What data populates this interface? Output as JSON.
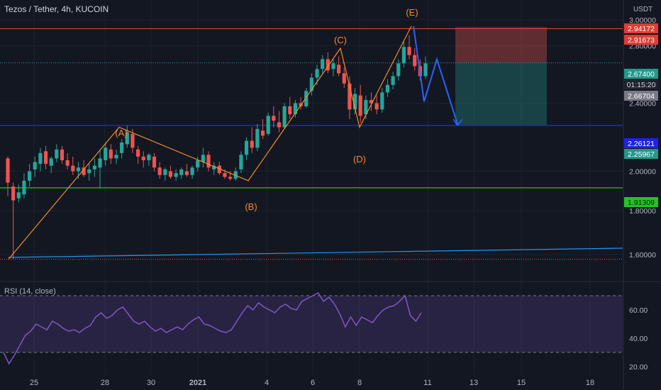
{
  "header": {
    "title": "Tezos / Tether, 4h, KUCOIN",
    "unit": "USDT"
  },
  "rsi": {
    "label": "RSI (14, close)",
    "levels": [
      70,
      30
    ],
    "ticks": [
      "60.00",
      "40.00",
      "20.00"
    ]
  },
  "colors": {
    "background": "#131722",
    "up": "#26a69a",
    "down": "#ef5350",
    "wave": "#f28c28",
    "projection": "#2962ff",
    "support": "#1e22e6",
    "green_line": "#22c422",
    "red_line": "#e53935",
    "trend": "#2196f3",
    "rsi": "#7e57c2",
    "grid": "#1e222d"
  },
  "chart_data": {
    "type": "candlestick",
    "title": "Tezos / Tether, 4h, KUCOIN",
    "ylabel": "USDT",
    "ylim": [
      1.5,
      3.05
    ],
    "y_ticks": [
      "3.00000",
      "2.80000",
      "2.40000",
      "2.00000",
      "1.80000",
      "1.60000"
    ],
    "x_ticks": [
      "25",
      "28",
      "30",
      "2021",
      "4",
      "6",
      "8",
      "11",
      "13",
      "15",
      "18"
    ],
    "wave_labels": [
      {
        "label": "(A)",
        "price": 2.25
      },
      {
        "label": "(B)",
        "price": 1.95
      },
      {
        "label": "(C)",
        "price": 2.78
      },
      {
        "label": "(D)",
        "price": 2.25
      },
      {
        "label": "(E)",
        "price": 2.95
      }
    ],
    "wave_path": [
      1.58,
      2.25,
      1.95,
      2.78,
      2.25,
      2.95
    ],
    "projection_path": [
      2.95,
      2.41,
      2.7,
      2.27
    ],
    "horizontal_lines": [
      {
        "name": "red-resistance",
        "price": 2.93
      },
      {
        "name": "blue-support",
        "price": 2.26121
      },
      {
        "name": "green-support",
        "price": 1.91309
      }
    ],
    "position": {
      "stop": 2.94172,
      "entry": 2.674,
      "target": 2.26121
    },
    "price_labels": [
      {
        "text": "2.94172",
        "price": 2.94172,
        "kind": "red"
      },
      {
        "text": "2.91673",
        "price": 2.91673,
        "kind": "red"
      },
      {
        "text": "2.67400",
        "price": 2.674,
        "kind": "teal"
      },
      {
        "text": "01:15:20",
        "price": 2.636,
        "kind": "dark"
      },
      {
        "text": "2.66704",
        "price": 2.66704,
        "kind": "grey"
      },
      {
        "text": "2.26121",
        "price": 2.26121,
        "kind": "blue"
      },
      {
        "text": "2.25967",
        "price": 2.25967,
        "kind": "teal"
      },
      {
        "text": "1.91309",
        "price": 1.91309,
        "kind": "green"
      }
    ],
    "candles": [
      [
        2.07,
        2.08,
        1.87,
        1.94
      ],
      [
        1.92,
        1.94,
        1.58,
        1.85
      ],
      [
        1.86,
        1.93,
        1.84,
        1.89
      ],
      [
        1.88,
        1.99,
        1.86,
        1.95
      ],
      [
        1.95,
        2.04,
        1.92,
        2.0
      ],
      [
        2.01,
        2.08,
        1.97,
        2.05
      ],
      [
        2.04,
        2.13,
        2.0,
        2.1
      ],
      [
        2.11,
        2.14,
        2.01,
        2.04
      ],
      [
        2.03,
        2.08,
        1.99,
        2.07
      ],
      [
        2.07,
        2.15,
        2.05,
        2.12
      ],
      [
        2.12,
        2.14,
        2.04,
        2.06
      ],
      [
        2.06,
        2.1,
        2.01,
        2.03
      ],
      [
        2.03,
        2.08,
        1.98,
        2.0
      ],
      [
        2.0,
        2.05,
        1.96,
        2.02
      ],
      [
        2.02,
        2.06,
        1.97,
        1.98
      ],
      [
        1.99,
        2.04,
        1.95,
        2.01
      ],
      [
        2.01,
        2.07,
        1.97,
        2.03
      ],
      [
        2.02,
        2.12,
        1.91,
        2.07
      ],
      [
        2.06,
        2.16,
        2.03,
        2.13
      ],
      [
        2.12,
        2.15,
        2.04,
        2.07
      ],
      [
        2.07,
        2.12,
        2.04,
        2.09
      ],
      [
        2.1,
        2.18,
        2.07,
        2.16
      ],
      [
        2.15,
        2.26,
        2.13,
        2.22
      ],
      [
        2.21,
        2.24,
        2.1,
        2.13
      ],
      [
        2.12,
        2.14,
        2.04,
        2.08
      ],
      [
        2.08,
        2.11,
        2.02,
        2.06
      ],
      [
        2.06,
        2.1,
        2.03,
        2.09
      ],
      [
        2.08,
        2.1,
        2.0,
        2.02
      ],
      [
        2.02,
        2.05,
        1.96,
        1.98
      ],
      [
        1.98,
        2.02,
        1.95,
        2.01
      ],
      [
        2.0,
        2.03,
        1.96,
        1.97
      ],
      [
        1.97,
        2.01,
        1.95,
        1.99
      ],
      [
        1.98,
        2.02,
        1.96,
        2.01
      ],
      [
        2.0,
        2.04,
        1.97,
        1.98
      ],
      [
        1.98,
        2.03,
        1.96,
        2.02
      ],
      [
        2.02,
        2.08,
        2.0,
        2.06
      ],
      [
        2.05,
        2.13,
        2.02,
        2.09
      ],
      [
        2.09,
        2.11,
        2.0,
        2.02
      ],
      [
        2.01,
        2.05,
        1.98,
        2.03
      ],
      [
        2.03,
        2.05,
        1.98,
        1.99
      ],
      [
        1.99,
        2.01,
        1.96,
        1.97
      ],
      [
        1.97,
        2.0,
        1.95,
        1.96
      ],
      [
        1.96,
        2.02,
        1.95,
        2.0
      ],
      [
        2.01,
        2.11,
        1.99,
        2.09
      ],
      [
        2.09,
        2.19,
        2.06,
        2.17
      ],
      [
        2.17,
        2.25,
        2.1,
        2.13
      ],
      [
        2.13,
        2.27,
        2.11,
        2.24
      ],
      [
        2.23,
        2.3,
        2.18,
        2.2
      ],
      [
        2.21,
        2.34,
        2.2,
        2.32
      ],
      [
        2.32,
        2.38,
        2.25,
        2.29
      ],
      [
        2.28,
        2.35,
        2.22,
        2.25
      ],
      [
        2.25,
        2.4,
        2.24,
        2.38
      ],
      [
        2.38,
        2.44,
        2.3,
        2.33
      ],
      [
        2.33,
        2.42,
        2.31,
        2.4
      ],
      [
        2.4,
        2.44,
        2.36,
        2.38
      ],
      [
        2.38,
        2.5,
        2.37,
        2.48
      ],
      [
        2.48,
        2.6,
        2.45,
        2.57
      ],
      [
        2.57,
        2.66,
        2.52,
        2.63
      ],
      [
        2.63,
        2.73,
        2.6,
        2.7
      ],
      [
        2.7,
        2.75,
        2.6,
        2.62
      ],
      [
        2.63,
        2.7,
        2.58,
        2.67
      ],
      [
        2.66,
        2.72,
        2.58,
        2.6
      ],
      [
        2.6,
        2.64,
        2.5,
        2.53
      ],
      [
        2.53,
        2.58,
        2.3,
        2.36
      ],
      [
        2.36,
        2.5,
        2.33,
        2.46
      ],
      [
        2.45,
        2.52,
        2.28,
        2.32
      ],
      [
        2.33,
        2.45,
        2.3,
        2.42
      ],
      [
        2.42,
        2.47,
        2.35,
        2.4
      ],
      [
        2.4,
        2.45,
        2.33,
        2.36
      ],
      [
        2.36,
        2.5,
        2.34,
        2.47
      ],
      [
        2.47,
        2.56,
        2.44,
        2.52
      ],
      [
        2.52,
        2.61,
        2.49,
        2.58
      ],
      [
        2.58,
        2.7,
        2.55,
        2.67
      ],
      [
        2.67,
        2.83,
        2.64,
        2.79
      ],
      [
        2.79,
        2.88,
        2.7,
        2.73
      ],
      [
        2.73,
        2.78,
        2.62,
        2.65
      ],
      [
        2.65,
        2.7,
        2.55,
        2.58
      ],
      [
        2.58,
        2.72,
        2.56,
        2.67
      ]
    ],
    "rsi_values": [
      30,
      22,
      28,
      35,
      42,
      45,
      50,
      48,
      46,
      52,
      50,
      47,
      45,
      46,
      44,
      47,
      49,
      55,
      58,
      54,
      56,
      60,
      62,
      57,
      52,
      50,
      52,
      48,
      45,
      47,
      44,
      46,
      48,
      46,
      50,
      53,
      55,
      50,
      49,
      47,
      45,
      44,
      46,
      52,
      58,
      63,
      60,
      65,
      62,
      60,
      58,
      62,
      64,
      61,
      60,
      66,
      68,
      70,
      72,
      66,
      69,
      64,
      57,
      48,
      55,
      49,
      55,
      53,
      51,
      56,
      60,
      62,
      63,
      66,
      70,
      56,
      52,
      58
    ]
  }
}
